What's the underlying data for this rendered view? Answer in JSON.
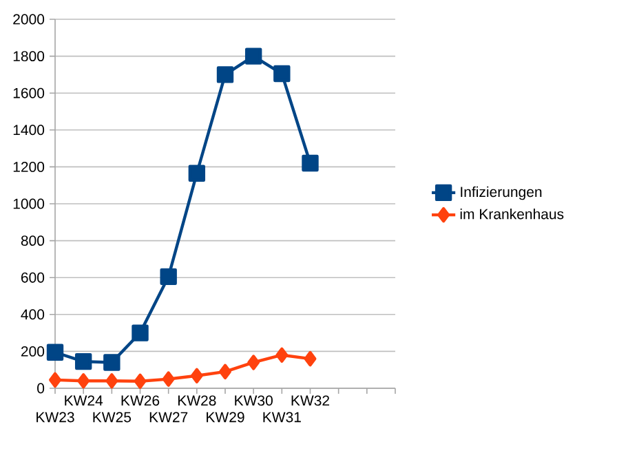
{
  "chart_data": {
    "type": "line",
    "categories": [
      "KW23",
      "KW24",
      "KW25",
      "KW26",
      "KW27",
      "KW28",
      "KW29",
      "KW30",
      "KW31",
      "KW32",
      null,
      null,
      null
    ],
    "series": [
      {
        "name": "Infizierungen",
        "color": "#004586",
        "marker": "square",
        "values": [
          195,
          145,
          140,
          300,
          605,
          1165,
          1700,
          1800,
          1705,
          1220,
          null,
          null,
          null
        ]
      },
      {
        "name": "im Krankenhaus",
        "color": "#ff420e",
        "marker": "diamond",
        "values": [
          45,
          40,
          40,
          38,
          50,
          68,
          90,
          140,
          180,
          160,
          null,
          null,
          null
        ]
      }
    ],
    "ylim": [
      0,
      2000
    ],
    "yticks": [
      0,
      200,
      400,
      600,
      800,
      1000,
      1200,
      1400,
      1600,
      1800,
      2000
    ],
    "grid": "y",
    "legend": "right"
  }
}
